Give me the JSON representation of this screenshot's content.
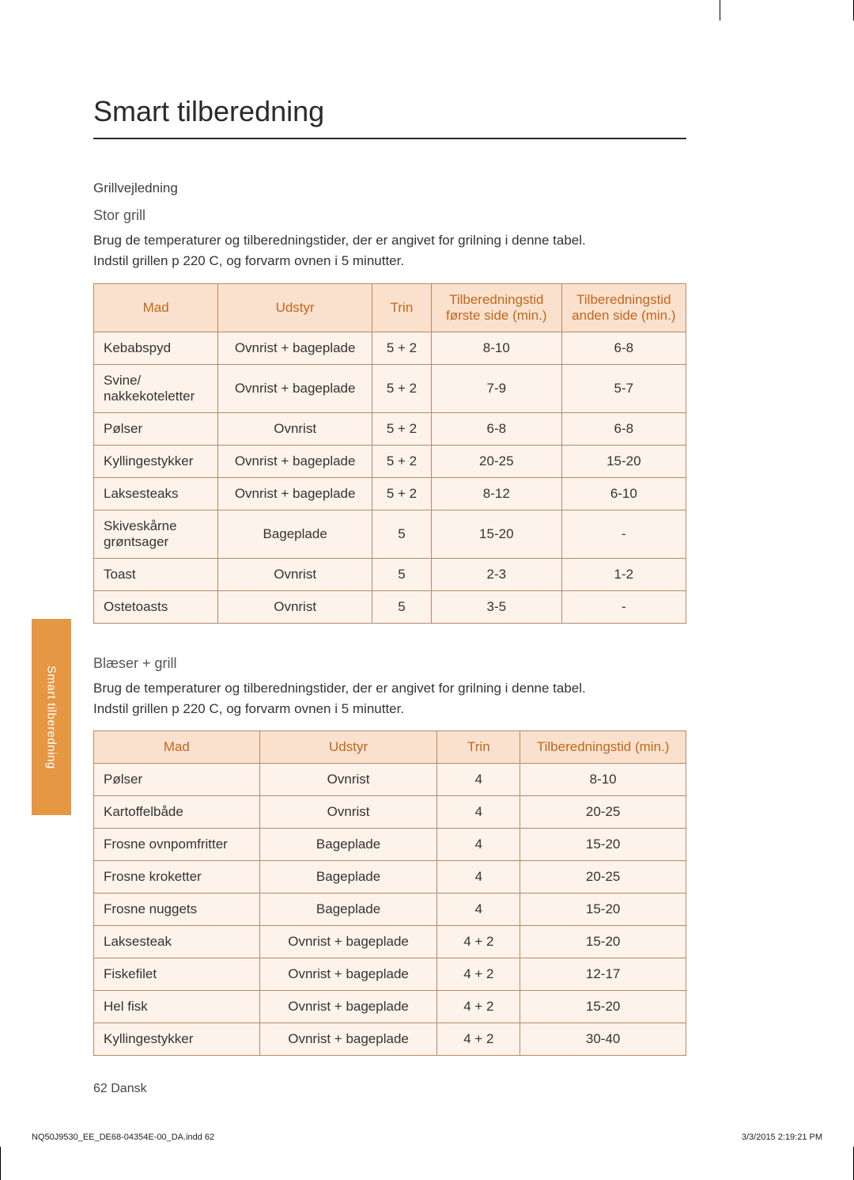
{
  "page": {
    "title": "Smart tilberedning",
    "side_tab": "Smart tilberedning",
    "page_number_label": "62  Dansk",
    "print_file": "NQ50J9530_EE_DE68-04354E-00_DA.indd   62",
    "print_timestamp": "3/3/2015   2:19:21 PM"
  },
  "section1": {
    "label": "Grillvejledning",
    "subsection": "Stor grill",
    "intro_line1": "Brug de temperaturer og tilberedningstider, der er angivet for grilning i denne tabel.",
    "intro_line2": "Indstil grillen p  220  C, og forvarm ovnen i 5 minutter."
  },
  "table1": {
    "headers": {
      "mad": "Mad",
      "udstyr": "Udstyr",
      "trin": "Trin",
      "tid1": "Tilberedningstid første side (min.)",
      "tid2": "Tilberedningstid anden side (min.)"
    },
    "col_widths": [
      "21%",
      "26%",
      "10%",
      "22%",
      "21%"
    ],
    "header_bg": "#fae1cd",
    "header_color": "#c0671e",
    "cell_bg": "#fdf3ea",
    "border_color": "#b5896a",
    "rows": [
      {
        "mad": "Kebabspyd",
        "udstyr": "Ovnrist + bageplade",
        "trin": "5 + 2",
        "t1": "8-10",
        "t2": "6-8"
      },
      {
        "mad": "Svine/\nnakkekoteletter",
        "udstyr": "Ovnrist + bageplade",
        "trin": "5 + 2",
        "t1": "7-9",
        "t2": "5-7"
      },
      {
        "mad": "Pølser",
        "udstyr": "Ovnrist",
        "trin": "5 + 2",
        "t1": "6-8",
        "t2": "6-8"
      },
      {
        "mad": "Kyllingestykker",
        "udstyr": "Ovnrist + bageplade",
        "trin": "5 + 2",
        "t1": "20-25",
        "t2": "15-20"
      },
      {
        "mad": "Laksesteaks",
        "udstyr": "Ovnrist + bageplade",
        "trin": "5 + 2",
        "t1": "8-12",
        "t2": "6-10"
      },
      {
        "mad": "Skiveskårne grøntsager",
        "udstyr": "Bageplade",
        "trin": "5",
        "t1": "15-20",
        "t2": "-"
      },
      {
        "mad": "Toast",
        "udstyr": "Ovnrist",
        "trin": "5",
        "t1": "2-3",
        "t2": "1-2"
      },
      {
        "mad": "Ostetoasts",
        "udstyr": "Ovnrist",
        "trin": "5",
        "t1": "3-5",
        "t2": "-"
      }
    ]
  },
  "section2": {
    "subsection": "Blæser + grill",
    "intro_line1": "Brug de temperaturer og tilberedningstider, der er angivet for grilning i denne tabel.",
    "intro_line2": "Indstil grillen p  220  C, og forvarm ovnen i 5 minutter."
  },
  "table2": {
    "headers": {
      "mad": "Mad",
      "udstyr": "Udstyr",
      "trin": "Trin",
      "tid": "Tilberedningstid (min.)"
    },
    "col_widths": [
      "28%",
      "30%",
      "14%",
      "28%"
    ],
    "header_bg": "#fae1cd",
    "header_color": "#c0671e",
    "cell_bg": "#fdf3ea",
    "border_color": "#b5896a",
    "rows": [
      {
        "mad": "Pølser",
        "udstyr": "Ovnrist",
        "trin": "4",
        "tid": "8-10"
      },
      {
        "mad": "Kartoffelbåde",
        "udstyr": "Ovnrist",
        "trin": "4",
        "tid": "20-25"
      },
      {
        "mad": "Frosne ovnpomfritter",
        "udstyr": "Bageplade",
        "trin": "4",
        "tid": "15-20"
      },
      {
        "mad": "Frosne kroketter",
        "udstyr": "Bageplade",
        "trin": "4",
        "tid": "20-25"
      },
      {
        "mad": "Frosne nuggets",
        "udstyr": "Bageplade",
        "trin": "4",
        "tid": "15-20"
      },
      {
        "mad": "Laksesteak",
        "udstyr": "Ovnrist + bageplade",
        "trin": "4 + 2",
        "tid": "15-20"
      },
      {
        "mad": "Fiskefilet",
        "udstyr": "Ovnrist + bageplade",
        "trin": "4 + 2",
        "tid": "12-17"
      },
      {
        "mad": "Hel fisk",
        "udstyr": "Ovnrist + bageplade",
        "trin": "4 + 2",
        "tid": "15-20"
      },
      {
        "mad": "Kyllingestykker",
        "udstyr": "Ovnrist + bageplade",
        "trin": "4 + 2",
        "tid": "30-40"
      }
    ]
  }
}
